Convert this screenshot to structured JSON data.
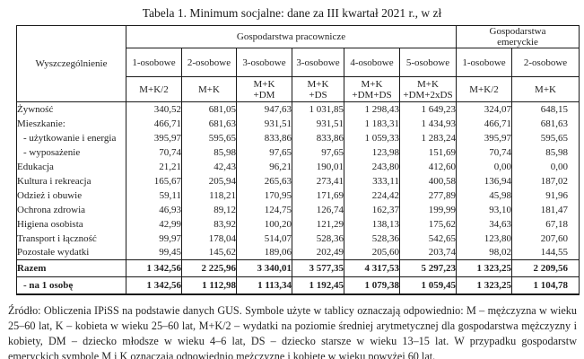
{
  "title": "Tabela 1. Minimum socjalne: dane za III kwartał 2021 r., w zł",
  "table": {
    "row_header": "Wyszczególnienie",
    "groups": [
      {
        "label": "Gospodarstwa pracownicze"
      },
      {
        "label": "Gospodarstwa\nemeryckie"
      }
    ],
    "columns": [
      {
        "size": "1-osobowe",
        "symbols": "M+K/2"
      },
      {
        "size": "2-osobowe",
        "symbols": "M+K"
      },
      {
        "size": "3-osobowe",
        "symbols": "M+K\n+DM"
      },
      {
        "size": "3-osobowe",
        "symbols": "M+K\n+DS"
      },
      {
        "size": "4-osobowe",
        "symbols": "M+K\n+DM+DS"
      },
      {
        "size": "5-osobowe",
        "symbols": "M+K\n+DM+2xDS"
      },
      {
        "size": "1-osobowe",
        "symbols": "M+K/2"
      },
      {
        "size": "2-osobowe",
        "symbols": "M+K"
      }
    ],
    "rows": [
      {
        "label": "Żywność",
        "style": "normal",
        "values": [
          "340,52",
          "681,05",
          "947,63",
          "1 031,85",
          "1 298,43",
          "1 649,23",
          "324,07",
          "648,15"
        ]
      },
      {
        "label": "Mieszkanie:",
        "style": "normal",
        "values": [
          "466,71",
          "681,63",
          "931,51",
          "931,51",
          "1 183,31",
          "1 434,93",
          "466,71",
          "681,63"
        ]
      },
      {
        "label": "- użytkowanie i energia",
        "style": "indent",
        "values": [
          "395,97",
          "595,65",
          "833,86",
          "833,86",
          "1 059,33",
          "1 283,24",
          "395,97",
          "595,65"
        ]
      },
      {
        "label": "- wyposażenie",
        "style": "indent",
        "values": [
          "70,74",
          "85,98",
          "97,65",
          "97,65",
          "123,98",
          "151,69",
          "70,74",
          "85,98"
        ]
      },
      {
        "label": "Edukacja",
        "style": "normal",
        "values": [
          "21,21",
          "42,43",
          "96,21",
          "190,01",
          "243,80",
          "412,60",
          "0,00",
          "0,00"
        ]
      },
      {
        "label": "Kultura i rekreacja",
        "style": "normal",
        "values": [
          "165,67",
          "205,94",
          "265,63",
          "273,41",
          "333,11",
          "400,58",
          "136,94",
          "187,02"
        ]
      },
      {
        "label": "Odzież i obuwie",
        "style": "normal",
        "values": [
          "59,11",
          "118,21",
          "170,95",
          "171,69",
          "224,42",
          "277,89",
          "45,98",
          "91,96"
        ]
      },
      {
        "label": "Ochrona zdrowia",
        "style": "normal",
        "values": [
          "46,93",
          "89,12",
          "124,75",
          "126,74",
          "162,37",
          "199,99",
          "93,10",
          "181,47"
        ]
      },
      {
        "label": "Higiena osobista",
        "style": "normal",
        "values": [
          "42,99",
          "83,92",
          "100,20",
          "121,29",
          "138,13",
          "175,62",
          "34,63",
          "67,18"
        ]
      },
      {
        "label": "Transport i łączność",
        "style": "normal",
        "values": [
          "99,97",
          "178,04",
          "514,07",
          "528,36",
          "528,36",
          "542,65",
          "123,80",
          "207,60"
        ]
      },
      {
        "label": "Pozostałe wydatki",
        "style": "normal",
        "values": [
          "99,45",
          "145,62",
          "189,06",
          "202,49",
          "205,60",
          "203,74",
          "98,02",
          "144,55"
        ]
      },
      {
        "label": "Razem",
        "style": "total",
        "values": [
          "1 342,56",
          "2 225,96",
          "3 340,01",
          "3 577,35",
          "4 317,53",
          "5 297,23",
          "1 323,25",
          "2 209,56"
        ]
      },
      {
        "label": "- na 1 osobę",
        "style": "total-indent",
        "values": [
          "1 342,56",
          "1 112,98",
          "1 113,34",
          "1 192,45",
          "1 079,38",
          "1 059,45",
          "1 323,25",
          "1 104,78"
        ]
      }
    ]
  },
  "footnote": "Źródło: Obliczenia IPiSS na podstawie danych GUS. Symbole użyte w tablicy oznaczają odpowiednio: M – mężczyzna w wieku 25–60 lat, K – kobieta w wieku 25–60 lat, M+K/2 – wydatki na poziomie średniej arytmetycznej dla gospodarstwa mężczyzny i kobiety, DM – dziecko młodsze w wieku 4–6 lat, DS – dziecko starsze w wieku 13–15 lat. W przypadku gospodarstw emeryckich symbole M i K oznaczają odpowiednio mężczyznę i kobietę w wieku powyżej 60 lat."
}
